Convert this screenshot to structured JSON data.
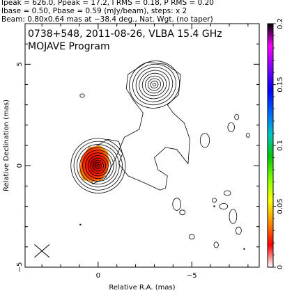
{
  "header": {
    "line1": "Ipeak = 626.0, Ppeak = 17.2, I RMS = 0.18, P RMS = 0.20",
    "line2": "Ibase = 0.50, Pbase = 0.59 (mJy/beam), steps: x 2",
    "line3": "Beam: 0.80x0.64 mas at −38.4 deg., Nat. Wgt. (no taper)"
  },
  "chart_data": {
    "type": "heatmap",
    "title": "0738+548, 2011-08-26, VLBA 15.4 GHz",
    "subtitle": "MOJAVE Program",
    "xlabel": "Relative R.A. (mas)",
    "ylabel": "Relative Declination (mas)",
    "xlim": [
      3.9,
      -8.6
    ],
    "ylim": [
      -5,
      7
    ],
    "x_ticks": [
      0,
      -5
    ],
    "x_tick_labels": [
      "0",
      "−5"
    ],
    "y_ticks": [
      5,
      0,
      -5
    ],
    "y_tick_labels": [
      "5",
      "0",
      "−5"
    ],
    "colorbar": {
      "range": [
        0,
        0.2
      ],
      "ticks": [
        0,
        0.05,
        0.1,
        0.15,
        0.2
      ],
      "tick_labels": [
        "0",
        "0.05",
        "0.1",
        "0.15",
        "0.2"
      ],
      "colors": [
        "#ffffff",
        "#ff0000",
        "#ff8c00",
        "#ffff00",
        "#80ff00",
        "#00c800",
        "#00c8c8",
        "#0064ff",
        "#0000ff",
        "#8000ff",
        "#ff00ff",
        "#000000"
      ]
    },
    "components": [
      {
        "name": "core",
        "x": 0.0,
        "y": 0.0,
        "peak_mJy_per_beam": 626.0,
        "contour_count": 11
      },
      {
        "name": "knot",
        "x": -3.0,
        "y": 4.0,
        "contour_count": 9
      }
    ],
    "beam": {
      "major_mas": 0.8,
      "minor_mas": 0.64,
      "pa_deg": -38.4,
      "x": 3.0,
      "y": -4.2
    },
    "outer_contour_envelope": [
      [
        0.45,
        -0.5
      ],
      [
        0.4,
        0.0
      ],
      [
        0.2,
        0.9
      ],
      [
        -0.5,
        1.3
      ],
      [
        -1.1,
        1.2
      ],
      [
        -1.3,
        0.6
      ],
      [
        -1.1,
        0.1
      ],
      [
        -1.6,
        -0.5
      ],
      [
        -2.6,
        -0.9
      ],
      [
        -3.3,
        -1.2
      ],
      [
        -3.6,
        -1.1
      ],
      [
        -3.7,
        -0.5
      ],
      [
        -3.2,
        -0.2
      ],
      [
        -3.0,
        0.4
      ],
      [
        -3.6,
        0.9
      ],
      [
        -4.2,
        0.8
      ],
      [
        -4.8,
        0.1
      ],
      [
        -4.9,
        1.3
      ],
      [
        -4.6,
        2.1
      ],
      [
        -4.0,
        2.6
      ],
      [
        -3.7,
        3.0
      ],
      [
        -4.3,
        3.5
      ],
      [
        -4.4,
        4.5
      ],
      [
        -3.6,
        5.0
      ],
      [
        -2.6,
        5.1
      ],
      [
        -1.6,
        4.5
      ],
      [
        -1.5,
        3.8
      ],
      [
        -1.9,
        3.2
      ],
      [
        -2.4,
        2.6
      ],
      [
        -2.2,
        1.8
      ],
      [
        -1.4,
        1.4
      ],
      [
        -0.9,
        0.3
      ],
      [
        -0.4,
        -0.6
      ],
      [
        0.3,
        -0.9
      ]
    ],
    "core_color_patch": [
      [
        1.0,
        -0.3
      ],
      [
        0.9,
        0.4
      ],
      [
        0.5,
        0.9
      ],
      [
        -0.1,
        1.0
      ],
      [
        -0.5,
        0.7
      ],
      [
        -0.6,
        0.2
      ],
      [
        -0.5,
        -0.3
      ],
      [
        -0.2,
        -0.7
      ],
      [
        0.3,
        -0.8
      ],
      [
        0.8,
        -0.7
      ]
    ],
    "isolated_contours": [
      {
        "x": 0.85,
        "y": 3.45,
        "rx": 0.12,
        "ry": 0.09
      },
      {
        "x": -5.7,
        "y": 1.25,
        "rx": 0.25,
        "ry": 0.35
      },
      {
        "x": -7.1,
        "y": 1.9,
        "rx": 0.18,
        "ry": 0.22
      },
      {
        "x": -7.4,
        "y": 2.4,
        "rx": 0.11,
        "ry": 0.13
      },
      {
        "x": -6.9,
        "y": -1.35,
        "rx": 0.18,
        "ry": 0.12
      },
      {
        "x": -6.2,
        "y": -1.7,
        "rx": 0.12,
        "ry": 0.1
      },
      {
        "x": -4.2,
        "y": -1.9,
        "rx": 0.22,
        "ry": 0.3
      },
      {
        "x": -4.5,
        "y": -2.3,
        "rx": 0.15,
        "ry": 0.12
      },
      {
        "x": -6.7,
        "y": -2.0,
        "rx": 0.22,
        "ry": 0.14
      },
      {
        "x": -5.0,
        "y": -3.5,
        "rx": 0.14,
        "ry": 0.12
      },
      {
        "x": -6.3,
        "y": -3.9,
        "rx": 0.12,
        "ry": 0.14
      },
      {
        "x": -7.5,
        "y": -3.2,
        "rx": 0.15,
        "ry": 0.18
      },
      {
        "x": -7.2,
        "y": -2.5,
        "rx": 0.2,
        "ry": 0.35
      },
      {
        "x": -8.0,
        "y": 1.5,
        "rx": 0.1,
        "ry": 0.1
      }
    ],
    "dots": [
      {
        "x": 0.95,
        "y": -2.9
      },
      {
        "x": -7.8,
        "y": -4.1
      },
      {
        "x": -6.2,
        "y": -2.0
      }
    ]
  }
}
